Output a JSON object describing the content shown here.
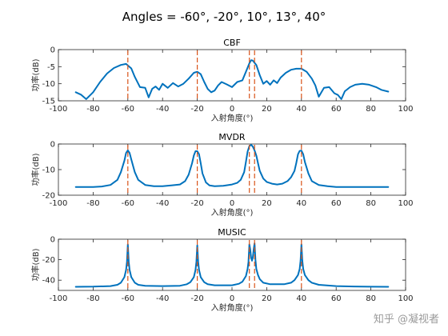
{
  "figure": {
    "title": "Angles = -60°, -20°, 10°, 13°, 40°",
    "watermark": "知乎 @凝视者"
  },
  "colors": {
    "curve": "#0072BD",
    "marker": "#D95319",
    "axis": "#262626"
  },
  "chart_data": [
    {
      "type": "line",
      "title": "CBF",
      "xlabel": "入射角度(°)",
      "ylabel": "功率(dB)",
      "xlim": [
        -100,
        100
      ],
      "ylim": [
        -15,
        0
      ],
      "xticks": [
        -100,
        -80,
        -60,
        -40,
        -20,
        0,
        20,
        40,
        60,
        80,
        100
      ],
      "yticks": [
        -15,
        -10,
        -5,
        0
      ],
      "marker_angles": [
        -60,
        -20,
        10,
        13,
        40
      ],
      "marker_style": "red dashed vertical lines",
      "series": [
        {
          "x": [
            -90,
            -87,
            -84,
            -80,
            -76,
            -72,
            -68,
            -64,
            -61,
            -58,
            -56,
            -53,
            -50,
            -48,
            -46,
            -44,
            -42,
            -40,
            -37,
            -34,
            -31,
            -28,
            -25,
            -22,
            -20,
            -18,
            -16,
            -14,
            -12,
            -10,
            -8,
            -6,
            -3,
            0,
            3,
            6,
            8,
            10,
            11,
            12,
            14,
            16,
            18,
            20,
            22,
            24,
            26,
            28,
            31,
            34,
            37,
            40,
            43,
            46,
            48,
            50,
            53,
            56,
            59,
            61,
            63,
            65,
            68,
            71,
            75,
            79,
            83,
            86,
            90
          ],
          "values": [
            -12.5,
            -13.2,
            -14.5,
            -12.5,
            -9.5,
            -7.0,
            -5.4,
            -4.5,
            -4.2,
            -5.5,
            -8.0,
            -11.0,
            -11.2,
            -14.0,
            -11.5,
            -10.8,
            -11.8,
            -10.0,
            -11.2,
            -9.8,
            -10.8,
            -10.0,
            -8.5,
            -6.8,
            -6.5,
            -7.2,
            -9.5,
            -11.5,
            -12.5,
            -12.0,
            -10.5,
            -9.5,
            -10.2,
            -11.0,
            -9.5,
            -9.0,
            -6.5,
            -4.0,
            -3.1,
            -3.2,
            -4.5,
            -7.5,
            -10.0,
            -9.2,
            -10.3,
            -9.0,
            -9.8,
            -8.2,
            -6.8,
            -5.9,
            -5.6,
            -5.6,
            -6.5,
            -8.5,
            -10.5,
            -13.8,
            -11.2,
            -11.0,
            -12.8,
            -13.3,
            -14.5,
            -12.2,
            -11.0,
            -10.3,
            -10.0,
            -10.3,
            -11.0,
            -11.8,
            -12.3
          ]
        }
      ]
    },
    {
      "type": "line",
      "title": "MVDR",
      "xlabel": "入射角度(°)",
      "ylabel": "功率(dB)",
      "xlim": [
        -100,
        100
      ],
      "ylim": [
        -20,
        0
      ],
      "xticks": [
        -100,
        -80,
        -60,
        -40,
        -20,
        0,
        20,
        40,
        60,
        80,
        100
      ],
      "yticks": [
        -20,
        -10,
        0
      ],
      "marker_angles": [
        -60,
        -20,
        10,
        13,
        40
      ],
      "marker_style": "red dashed vertical lines",
      "series": [
        {
          "x": [
            -90,
            -85,
            -80,
            -75,
            -70,
            -66,
            -64,
            -62,
            -61,
            -60,
            -59,
            -58,
            -56,
            -54,
            -50,
            -45,
            -40,
            -35,
            -30,
            -27,
            -25,
            -23,
            -22,
            -21,
            -20,
            -19,
            -18,
            -17,
            -15,
            -13,
            -10,
            -5,
            0,
            3,
            5,
            7,
            8,
            9,
            10,
            11,
            12,
            13,
            14,
            15,
            16,
            18,
            20,
            23,
            26,
            29,
            32,
            34,
            36,
            37,
            38,
            39,
            40,
            41,
            42,
            44,
            46,
            50,
            55,
            60,
            70,
            80,
            90
          ],
          "values": [
            -16.8,
            -16.8,
            -16.8,
            -16.6,
            -16.0,
            -14.0,
            -11.0,
            -6.5,
            -3.5,
            -2.5,
            -3.5,
            -6.0,
            -11.0,
            -14.0,
            -16.0,
            -16.5,
            -16.5,
            -16.2,
            -15.8,
            -14.5,
            -12.0,
            -7.5,
            -4.5,
            -2.8,
            -2.8,
            -4.0,
            -7.5,
            -11.5,
            -15.0,
            -16.2,
            -16.5,
            -16.3,
            -15.8,
            -15.2,
            -14.0,
            -11.0,
            -7.0,
            -3.0,
            -0.8,
            -0.3,
            -1.0,
            -2.5,
            -4.5,
            -7.5,
            -10.5,
            -13.5,
            -14.8,
            -15.5,
            -15.8,
            -15.5,
            -14.5,
            -13.0,
            -10.5,
            -7.5,
            -4.0,
            -2.7,
            -2.6,
            -4.0,
            -7.0,
            -11.5,
            -14.5,
            -16.0,
            -16.5,
            -16.8,
            -16.8,
            -16.8,
            -16.8
          ]
        }
      ]
    },
    {
      "type": "line",
      "title": "MUSIC",
      "xlabel": "入射角度(°)",
      "ylabel": "功率(dB)",
      "xlim": [
        -100,
        100
      ],
      "ylim": [
        -50,
        0
      ],
      "xticks": [
        -100,
        -80,
        -60,
        -40,
        -20,
        0,
        20,
        40,
        60,
        80,
        100
      ],
      "yticks": [
        -40,
        -20,
        0
      ],
      "marker_angles": [
        -60,
        -20,
        10,
        13,
        40
      ],
      "marker_style": "red dashed vertical lines",
      "series": [
        {
          "x": [
            -90,
            -80,
            -70,
            -66,
            -64,
            -62,
            -61,
            -60.5,
            -60,
            -59.5,
            -59,
            -58,
            -56,
            -54,
            -50,
            -40,
            -30,
            -26,
            -24,
            -22,
            -21,
            -20.5,
            -20,
            -19.5,
            -19,
            -18,
            -16,
            -14,
            -10,
            0,
            4,
            6,
            8,
            9,
            9.5,
            10,
            10.5,
            11,
            11.5,
            12,
            12.5,
            13,
            13.5,
            14,
            15,
            16,
            18,
            22,
            30,
            34,
            36,
            38,
            39,
            39.5,
            40,
            40.5,
            41,
            42,
            44,
            46,
            50,
            60,
            70,
            80,
            90
          ],
          "values": [
            -46.5,
            -46.3,
            -45.8,
            -44.5,
            -42.5,
            -37.0,
            -30.0,
            -22.0,
            -5.0,
            -22.0,
            -30.0,
            -37.0,
            -42.5,
            -44.5,
            -45.5,
            -45.8,
            -45.5,
            -44.0,
            -42.0,
            -37.0,
            -30.0,
            -22.0,
            -6.0,
            -22.0,
            -30.0,
            -37.0,
            -42.0,
            -44.0,
            -45.0,
            -45.0,
            -43.5,
            -41.5,
            -36.0,
            -29.0,
            -22.0,
            -5.0,
            -10.0,
            -18.0,
            -21.0,
            -18.0,
            -10.0,
            -4.0,
            -20.0,
            -29.0,
            -35.0,
            -39.0,
            -42.5,
            -44.0,
            -44.0,
            -42.5,
            -40.0,
            -35.0,
            -29.0,
            -21.0,
            -5.0,
            -21.0,
            -29.0,
            -35.0,
            -40.0,
            -42.5,
            -44.5,
            -45.8,
            -46.2,
            -46.4,
            -46.5
          ]
        }
      ]
    }
  ]
}
